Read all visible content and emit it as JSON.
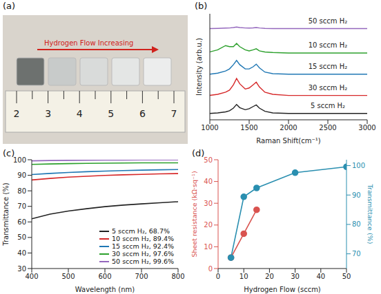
{
  "chart_data": [
    {
      "panel": "(a)",
      "type": "photo",
      "annotation": "Hydrogen Flow Increasing",
      "ruler_labels": [
        2,
        3,
        4,
        5,
        6,
        7
      ],
      "colors": [
        "#6d716f",
        "#c8cbca",
        "#d9dbda",
        "#e4e6e5",
        "#eceded"
      ]
    },
    {
      "panel": "(b)",
      "type": "line",
      "x_label": "Raman Shift(cm⁻¹)",
      "y_label": "Intensity (arb.u.)",
      "x": [
        1000,
        1100,
        1200,
        1250,
        1300,
        1340,
        1380,
        1450,
        1500,
        1550,
        1590,
        1630,
        1700,
        1800,
        2000,
        2200,
        2500,
        2700,
        2900,
        3000
      ],
      "series": [
        {
          "name": "50 sccm H₂",
          "color": "#9467bd",
          "values": [
            8.6,
            8.62,
            8.65,
            8.66,
            8.7,
            8.75,
            8.7,
            8.66,
            8.65,
            8.67,
            8.7,
            8.66,
            8.62,
            8.6,
            8.6,
            8.6,
            8.6,
            8.6,
            8.6,
            8.6
          ]
        },
        {
          "name": "10 sccm H₂",
          "color": "#2ca02c",
          "values": [
            6.4,
            6.6,
            7.0,
            6.9,
            6.9,
            7.2,
            6.9,
            6.6,
            6.5,
            6.6,
            6.7,
            6.5,
            6.4,
            6.35,
            6.3,
            6.3,
            6.3,
            6.3,
            6.3,
            6.3
          ]
        },
        {
          "name": "15 sccm H₂",
          "color": "#1f77b4",
          "values": [
            4.3,
            4.4,
            4.6,
            4.8,
            5.2,
            5.6,
            5.2,
            4.8,
            4.8,
            5.0,
            5.25,
            4.9,
            4.5,
            4.35,
            4.3,
            4.3,
            4.3,
            4.3,
            4.3,
            4.3
          ]
        },
        {
          "name": "30 sccm H₂",
          "color": "#d62728",
          "values": [
            2.3,
            2.4,
            2.6,
            2.8,
            3.3,
            3.9,
            3.4,
            2.9,
            3.0,
            3.3,
            3.55,
            3.1,
            2.6,
            2.4,
            2.3,
            2.3,
            2.3,
            2.3,
            2.3,
            2.3
          ]
        },
        {
          "name": "5 sccm H₂",
          "color": "#222222",
          "values": [
            0.6,
            0.65,
            0.75,
            0.85,
            1.1,
            1.45,
            1.15,
            0.95,
            1.05,
            1.25,
            1.4,
            1.1,
            0.8,
            0.65,
            0.6,
            0.6,
            0.6,
            0.6,
            0.6,
            0.6
          ]
        }
      ],
      "xlim": [
        1000,
        3000
      ],
      "xticks": [
        1000,
        1500,
        2000,
        2500,
        3000
      ],
      "ylim": [
        0,
        10
      ],
      "tick_labels": "x"
    },
    {
      "panel": "(c)",
      "type": "line",
      "x_label": "Wavelength (nm)",
      "y_label": "Transmittance (%)",
      "x": [
        400,
        450,
        500,
        550,
        600,
        650,
        700,
        750,
        800
      ],
      "series": [
        {
          "name": "5 sccm H₂, 68.7%",
          "color": "#222222",
          "values": [
            62,
            65,
            67,
            68.5,
            69.8,
            70.8,
            71.6,
            72.3,
            73
          ]
        },
        {
          "name": "10 sccm H₂, 89.4%",
          "color": "#d62728",
          "values": [
            87,
            88,
            88.8,
            89.4,
            89.9,
            90.3,
            90.6,
            90.9,
            91.1
          ]
        },
        {
          "name": "15 sccm H₂, 92.4%",
          "color": "#1f77b4",
          "values": [
            90.5,
            91.2,
            91.8,
            92.3,
            92.7,
            93,
            93.3,
            93.5,
            93.7
          ]
        },
        {
          "name": "30 sccm H₂, 97.6%",
          "color": "#2ca02c",
          "values": [
            97,
            97.3,
            97.5,
            97.7,
            97.8,
            97.9,
            98,
            98,
            98
          ]
        },
        {
          "name": "50 sccm H₂, 99.6%",
          "color": "#9467bd",
          "values": [
            99.3,
            99.5,
            99.6,
            99.7,
            99.8,
            99.8,
            99.9,
            99.9,
            99.9
          ]
        }
      ],
      "xlim": [
        400,
        800
      ],
      "xticks": [
        400,
        500,
        600,
        700,
        800
      ],
      "ylim": [
        30,
        100
      ],
      "yticks": [
        30,
        40,
        50,
        60,
        70,
        80,
        90,
        100
      ],
      "legend": "lower right"
    },
    {
      "panel": "(d)",
      "type": "line",
      "x_label": "Hydrogen Flow (sccm)",
      "y_label": "Sheet resistance (kΩ·sq⁻¹)",
      "y2_label": "Transmittance (%)",
      "x": [
        5,
        10,
        15,
        30,
        50
      ],
      "series": [
        {
          "color": "#d9534f",
          "marker": "circle",
          "values": [
            5,
            16,
            27,
            null,
            null
          ]
        },
        {
          "color": "#2a8fb0",
          "marker": "circle",
          "axis": "y2",
          "values": [
            68.7,
            89.4,
            92.4,
            97.6,
            99.6
          ]
        }
      ],
      "xlim": [
        0,
        50
      ],
      "xticks": [
        0,
        10,
        20,
        30,
        40,
        50
      ],
      "ylim": [
        0,
        50
      ],
      "yticks": [
        0,
        10,
        20,
        30,
        40,
        50
      ],
      "y2lim": [
        65,
        102
      ],
      "y2ticks": [
        70,
        80,
        90,
        100
      ]
    }
  ]
}
